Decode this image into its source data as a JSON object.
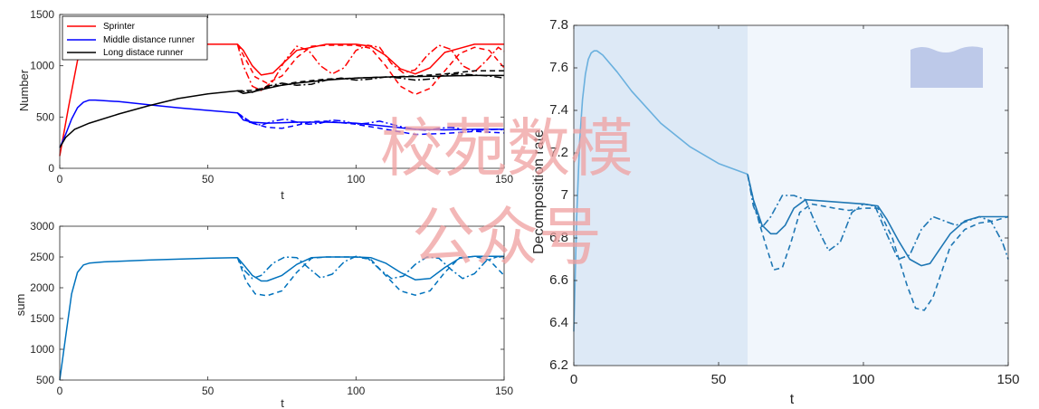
{
  "watermark": {
    "line1": "校苑数模",
    "line2": "公众号",
    "color": "#f08a8a"
  },
  "chart_data": [
    {
      "type": "line",
      "xlabel": "t",
      "ylabel": "Number",
      "xlim": [
        0,
        150
      ],
      "ylim": [
        0,
        1500
      ],
      "xticks": [
        0,
        50,
        100,
        150
      ],
      "yticks": [
        0,
        500,
        1000,
        1500
      ],
      "legend_position": "top-left",
      "series": [
        {
          "name": "Sprinter",
          "color": "#ff0000",
          "style": "solid",
          "x": [
            0,
            3,
            6,
            8,
            10,
            20,
            40,
            60,
            62,
            65,
            68,
            72,
            76,
            80,
            90,
            100,
            105,
            110,
            115,
            120,
            125,
            130,
            140,
            150
          ],
          "y": [
            120,
            600,
            1050,
            1180,
            1200,
            1210,
            1210,
            1210,
            1150,
            1000,
            910,
            930,
            1040,
            1150,
            1210,
            1210,
            1190,
            1100,
            970,
            920,
            980,
            1130,
            1210,
            1210
          ]
        },
        {
          "name": "",
          "color": "#ff0000",
          "style": "dashed",
          "x": [
            60,
            63,
            66,
            70,
            75,
            80,
            85,
            90,
            100,
            105,
            110,
            115,
            120,
            125,
            130,
            135,
            140,
            145,
            150
          ],
          "y": [
            1210,
            1050,
            890,
            830,
            900,
            1080,
            1190,
            1200,
            1200,
            1170,
            1000,
            800,
            720,
            780,
            950,
            1120,
            1180,
            1150,
            980
          ]
        },
        {
          "name": "",
          "color": "#ff0000",
          "style": "dashdot",
          "x": [
            60,
            62,
            65,
            68,
            72,
            76,
            80,
            84,
            88,
            92,
            96,
            100,
            104,
            108,
            112,
            116,
            120,
            124,
            128,
            132,
            136,
            140,
            144,
            148,
            150
          ],
          "y": [
            1210,
            1000,
            800,
            760,
            850,
            1050,
            1190,
            1150,
            1000,
            920,
            980,
            1150,
            1200,
            1180,
            1020,
            930,
            960,
            1100,
            1200,
            1160,
            1000,
            940,
            1050,
            1180,
            1140
          ]
        },
        {
          "name": "Middle distance runner",
          "color": "#0000ff",
          "style": "solid",
          "x": [
            0,
            2,
            4,
            6,
            8,
            10,
            12,
            20,
            30,
            40,
            50,
            60,
            62,
            65,
            70,
            75,
            80,
            90,
            100,
            110,
            120,
            130,
            140,
            150
          ],
          "y": [
            200,
            330,
            480,
            590,
            645,
            665,
            665,
            650,
            620,
            590,
            565,
            540,
            470,
            450,
            440,
            445,
            450,
            450,
            440,
            410,
            380,
            375,
            380,
            380
          ]
        },
        {
          "name": "",
          "color": "#0000ff",
          "style": "dashed",
          "x": [
            60,
            65,
            70,
            75,
            80,
            85,
            90,
            100,
            110,
            120,
            130,
            140,
            150
          ],
          "y": [
            540,
            440,
            400,
            390,
            420,
            455,
            460,
            430,
            380,
            330,
            340,
            360,
            345
          ]
        },
        {
          "name": "",
          "color": "#0000ff",
          "style": "dashdot",
          "x": [
            60,
            64,
            68,
            72,
            76,
            80,
            84,
            88,
            92,
            96,
            100,
            104,
            108,
            112,
            116,
            120,
            124,
            128,
            132,
            136,
            140,
            144,
            148,
            150
          ],
          "y": [
            540,
            450,
            420,
            460,
            480,
            450,
            430,
            440,
            470,
            460,
            430,
            440,
            460,
            430,
            400,
            380,
            370,
            390,
            400,
            380,
            370,
            375,
            380,
            375
          ]
        },
        {
          "name": "Long distace runner",
          "color": "#000000",
          "style": "solid",
          "x": [
            0,
            2,
            5,
            10,
            20,
            30,
            40,
            50,
            60,
            62,
            65,
            70,
            75,
            80,
            90,
            100,
            110,
            120,
            130,
            140,
            150
          ],
          "y": [
            200,
            300,
            380,
            440,
            530,
            610,
            680,
            725,
            755,
            730,
            745,
            780,
            810,
            830,
            860,
            880,
            890,
            895,
            900,
            905,
            905
          ]
        },
        {
          "name": "",
          "color": "#000000",
          "style": "dashed",
          "x": [
            60,
            65,
            70,
            80,
            90,
            100,
            110,
            120,
            130,
            140,
            150
          ],
          "y": [
            755,
            760,
            790,
            840,
            870,
            880,
            890,
            900,
            920,
            950,
            950
          ]
        },
        {
          "name": "",
          "color": "#000000",
          "style": "dashdot",
          "x": [
            60,
            65,
            70,
            75,
            80,
            85,
            90,
            95,
            100,
            105,
            110,
            115,
            120,
            125,
            130,
            135,
            140,
            145,
            150
          ],
          "y": [
            755,
            740,
            800,
            830,
            810,
            820,
            860,
            880,
            860,
            870,
            890,
            880,
            860,
            870,
            910,
            920,
            910,
            900,
            880
          ]
        }
      ]
    },
    {
      "type": "line",
      "xlabel": "t",
      "ylabel": "sum",
      "xlim": [
        0,
        150
      ],
      "ylim": [
        500,
        3000
      ],
      "xticks": [
        0,
        50,
        100,
        150
      ],
      "yticks": [
        500,
        1000,
        1500,
        2000,
        2500,
        3000
      ],
      "series": [
        {
          "name": "",
          "color": "#0072bd",
          "style": "solid",
          "x": [
            0,
            2,
            4,
            6,
            8,
            10,
            15,
            20,
            30,
            40,
            50,
            60,
            62,
            65,
            68,
            70,
            75,
            80,
            85,
            90,
            100,
            105,
            110,
            115,
            120,
            125,
            130,
            135,
            140,
            150
          ],
          "y": [
            500,
            1200,
            1900,
            2250,
            2370,
            2400,
            2420,
            2430,
            2450,
            2465,
            2480,
            2490,
            2380,
            2200,
            2110,
            2110,
            2200,
            2380,
            2490,
            2500,
            2500,
            2490,
            2400,
            2250,
            2130,
            2150,
            2330,
            2480,
            2510,
            2510
          ]
        },
        {
          "name": "",
          "color": "#0072bd",
          "style": "dashed",
          "x": [
            60,
            63,
            66,
            70,
            75,
            80,
            85,
            90,
            100,
            105,
            110,
            115,
            120,
            125,
            130,
            135,
            140,
            145,
            150
          ],
          "y": [
            2490,
            2100,
            1900,
            1870,
            1950,
            2250,
            2480,
            2500,
            2500,
            2460,
            2200,
            1950,
            1880,
            1950,
            2250,
            2490,
            2510,
            2450,
            2200
          ]
        },
        {
          "name": "",
          "color": "#0072bd",
          "style": "dashdot",
          "x": [
            60,
            62,
            65,
            68,
            72,
            76,
            80,
            84,
            88,
            92,
            96,
            100,
            104,
            108,
            112,
            116,
            120,
            124,
            128,
            132,
            136,
            140,
            144,
            148,
            150
          ],
          "y": [
            2490,
            2300,
            2150,
            2200,
            2400,
            2500,
            2490,
            2320,
            2160,
            2220,
            2420,
            2510,
            2480,
            2300,
            2150,
            2190,
            2380,
            2500,
            2480,
            2300,
            2150,
            2230,
            2440,
            2510,
            2470
          ]
        }
      ]
    },
    {
      "type": "line",
      "xlabel": "t",
      "ylabel": "Decomposition rate",
      "xlim": [
        0,
        150
      ],
      "ylim": [
        6.2,
        7.8
      ],
      "xticks": [
        0,
        50,
        100,
        150
      ],
      "yticks": [
        6.2,
        6.4,
        6.6,
        6.8,
        7.0,
        7.2,
        7.4,
        7.6,
        7.8
      ],
      "shaded_regions": [
        {
          "x": [
            0,
            60
          ],
          "color": "#dde9f6"
        },
        {
          "x": [
            60,
            150
          ],
          "color": "#f1f6fc"
        }
      ],
      "series": [
        {
          "name": "",
          "color": "#6ab0de",
          "style": "solid",
          "x": [
            0,
            1,
            2,
            3,
            4,
            5,
            6,
            7,
            8,
            10,
            15,
            20,
            30,
            40,
            50,
            60
          ],
          "y": [
            6.36,
            6.9,
            7.25,
            7.45,
            7.57,
            7.64,
            7.67,
            7.68,
            7.68,
            7.66,
            7.58,
            7.49,
            7.34,
            7.23,
            7.15,
            7.1
          ]
        },
        {
          "name": "",
          "color": "#1f77b4",
          "style": "solid",
          "x": [
            60,
            62,
            65,
            68,
            70,
            73,
            76,
            80,
            90,
            100,
            105,
            108,
            112,
            116,
            120,
            123,
            126,
            130,
            135,
            140,
            150
          ],
          "y": [
            7.1,
            6.98,
            6.86,
            6.82,
            6.82,
            6.86,
            6.94,
            6.98,
            6.97,
            6.96,
            6.95,
            6.89,
            6.79,
            6.7,
            6.67,
            6.68,
            6.74,
            6.82,
            6.88,
            6.9,
            6.9
          ]
        },
        {
          "name": "",
          "color": "#1f77b4",
          "style": "dashed",
          "x": [
            60,
            63,
            66,
            69,
            72,
            75,
            78,
            82,
            86,
            90,
            95,
            100,
            105,
            110,
            115,
            118,
            121,
            124,
            127,
            130,
            135,
            140,
            145,
            150
          ],
          "y": [
            7.1,
            6.92,
            6.78,
            6.65,
            6.66,
            6.78,
            6.92,
            6.96,
            6.95,
            6.94,
            6.93,
            6.94,
            6.94,
            6.8,
            6.58,
            6.47,
            6.46,
            6.52,
            6.64,
            6.76,
            6.84,
            6.87,
            6.88,
            6.9
          ]
        },
        {
          "name": "",
          "color": "#1f77b4",
          "style": "dashdot",
          "x": [
            60,
            62,
            65,
            68,
            72,
            76,
            80,
            84,
            88,
            92,
            96,
            100,
            104,
            108,
            112,
            116,
            120,
            124,
            128,
            132,
            136,
            140,
            144,
            148,
            150
          ],
          "y": [
            7.1,
            6.95,
            6.85,
            6.9,
            7.0,
            7.0,
            6.98,
            6.85,
            6.74,
            6.78,
            6.92,
            6.96,
            6.95,
            6.82,
            6.7,
            6.72,
            6.84,
            6.9,
            6.88,
            6.86,
            6.88,
            6.9,
            6.88,
            6.78,
            6.7
          ]
        }
      ]
    }
  ]
}
